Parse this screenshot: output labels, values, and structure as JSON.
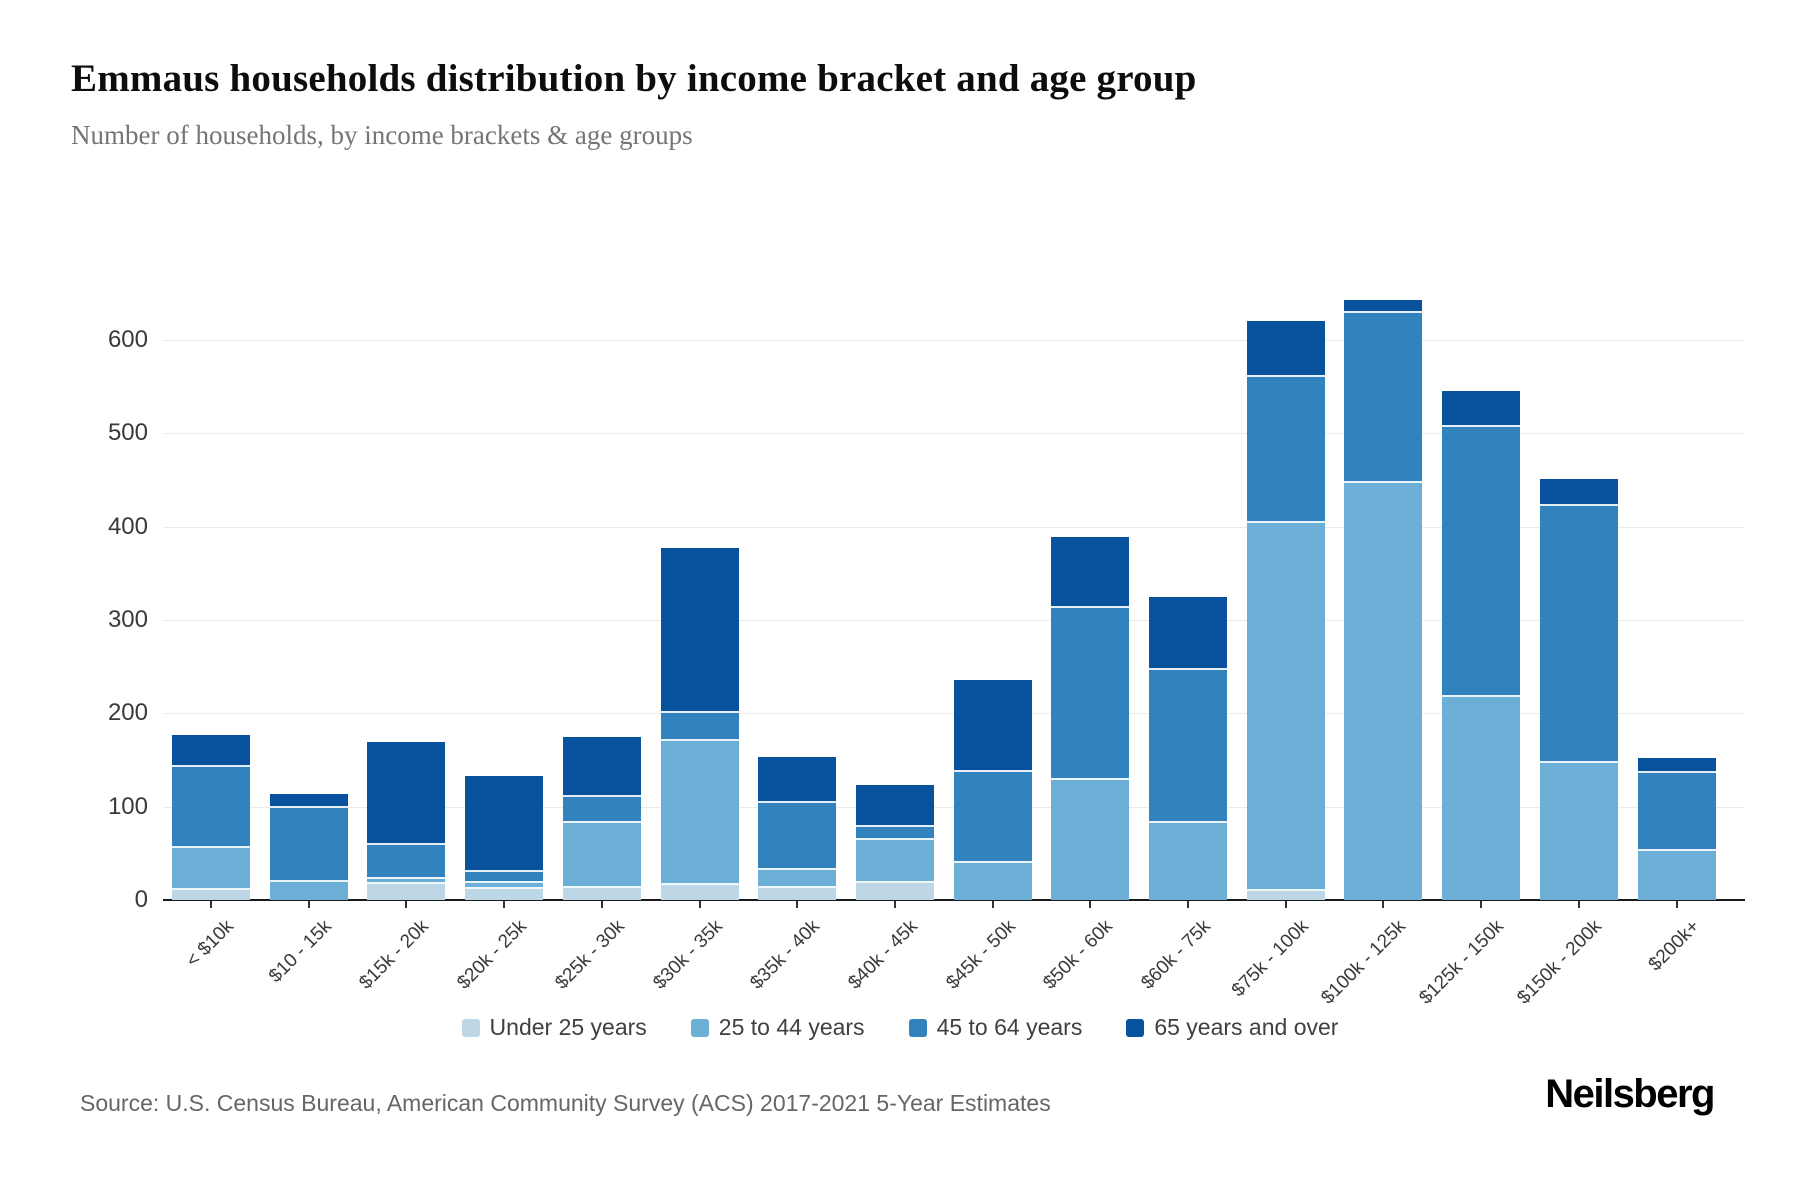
{
  "header": {
    "title": "Emmaus households distribution by income bracket and age group",
    "subtitle": "Number of households, by income brackets & age groups"
  },
  "footer": {
    "source": "Source: U.S. Census Bureau, American Community Survey (ACS) 2017-2021 5-Year Estimates",
    "brand": "Neilsberg"
  },
  "chart_data": {
    "type": "bar",
    "stacked": true,
    "title": "Emmaus households distribution by income bracket and age group",
    "xlabel": "",
    "ylabel": "Number of households",
    "categories": [
      "< $10k",
      "$10 - 15k",
      "$15k - 20k",
      "$20k - 25k",
      "$25k - 30k",
      "$30k - 35k",
      "$35k - 40k",
      "$40k - 45k",
      "$45k - 50k",
      "$50k - 60k",
      "$60k - 75k",
      "$75k - 100k",
      "$100k - 125k",
      "$125k - 150k",
      "$150k - 200k",
      "$200k+"
    ],
    "series": [
      {
        "name": "Under 25 years",
        "color": "#bdd7e7",
        "values": [
          11,
          0,
          17,
          12,
          13,
          16,
          13,
          18,
          0,
          0,
          0,
          10,
          0,
          0,
          0,
          0
        ]
      },
      {
        "name": "25 to 44 years",
        "color": "#6baed6",
        "values": [
          45,
          19,
          5,
          6,
          69,
          154,
          19,
          46,
          40,
          129,
          82,
          394,
          447,
          217,
          147,
          52
        ]
      },
      {
        "name": "45 to 64 years",
        "color": "#3182bd",
        "values": [
          86,
          80,
          37,
          12,
          28,
          30,
          72,
          14,
          97,
          184,
          164,
          156,
          182,
          290,
          275,
          84
        ]
      },
      {
        "name": "65 years and over",
        "color": "#08519c",
        "values": [
          35,
          15,
          110,
          103,
          65,
          177,
          49,
          45,
          99,
          76,
          79,
          60,
          14,
          38,
          29,
          16
        ]
      }
    ],
    "totals": [
      177,
      114,
      169,
      133,
      175,
      377,
      153,
      123,
      236,
      389,
      325,
      620,
      643,
      545,
      451,
      152
    ],
    "ylim": [
      0,
      650
    ],
    "yticks": [
      0,
      100,
      200,
      300,
      400,
      500,
      600
    ],
    "grid": true,
    "legend_position": "bottom"
  }
}
